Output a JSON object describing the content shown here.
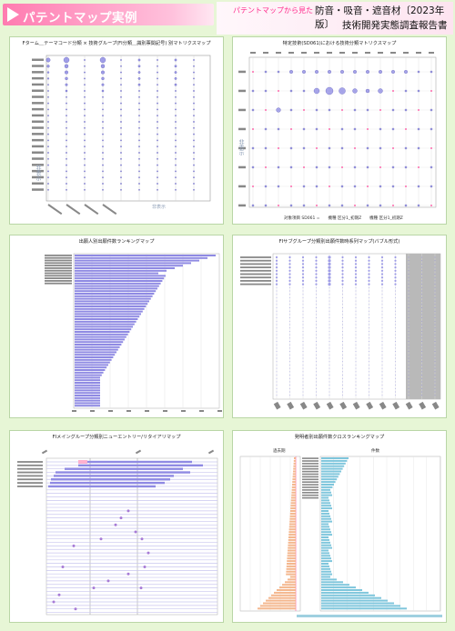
{
  "header": {
    "title": "パテントマップ実例",
    "subtitle": "パテントマップから見た",
    "line1": "防音・吸音・遮音材〔2023年版〕",
    "line2": "技術開発実態調査報告書"
  },
  "panels": [
    {
      "id": "p1",
      "title": "Fターム＿テーマコード分類 × 技術グループ(FI分類＿識別票関記号) 別マトリクスマップ",
      "ylabel": "非表示",
      "xcorner": "非表示"
    },
    {
      "id": "p2",
      "title": "特定技術(SD061)における技術分類マトリクスマップ",
      "ylabel": "非表示",
      "note": "対象項目 SD061 =　　機種 区分1_初期Z　　機種 区分1_初期Z"
    },
    {
      "id": "p3",
      "title": "出願人別出願件数ランキングマップ"
    },
    {
      "id": "p4",
      "title": "FIサブグループ分類別出願件数時系列マップ(バブル形式)"
    },
    {
      "id": "p5",
      "title": "FIメイングループ分類別ニューエントリー/リタイアリマップ"
    },
    {
      "id": "p6",
      "title": "発明者別出願件数クロスランキングマップ",
      "left_label": "過去期",
      "right_label": "件数"
    }
  ],
  "colors": {
    "bubble": "#7b78e0",
    "bar": "#8f8ae3",
    "accent": "#ff3f96"
  }
}
